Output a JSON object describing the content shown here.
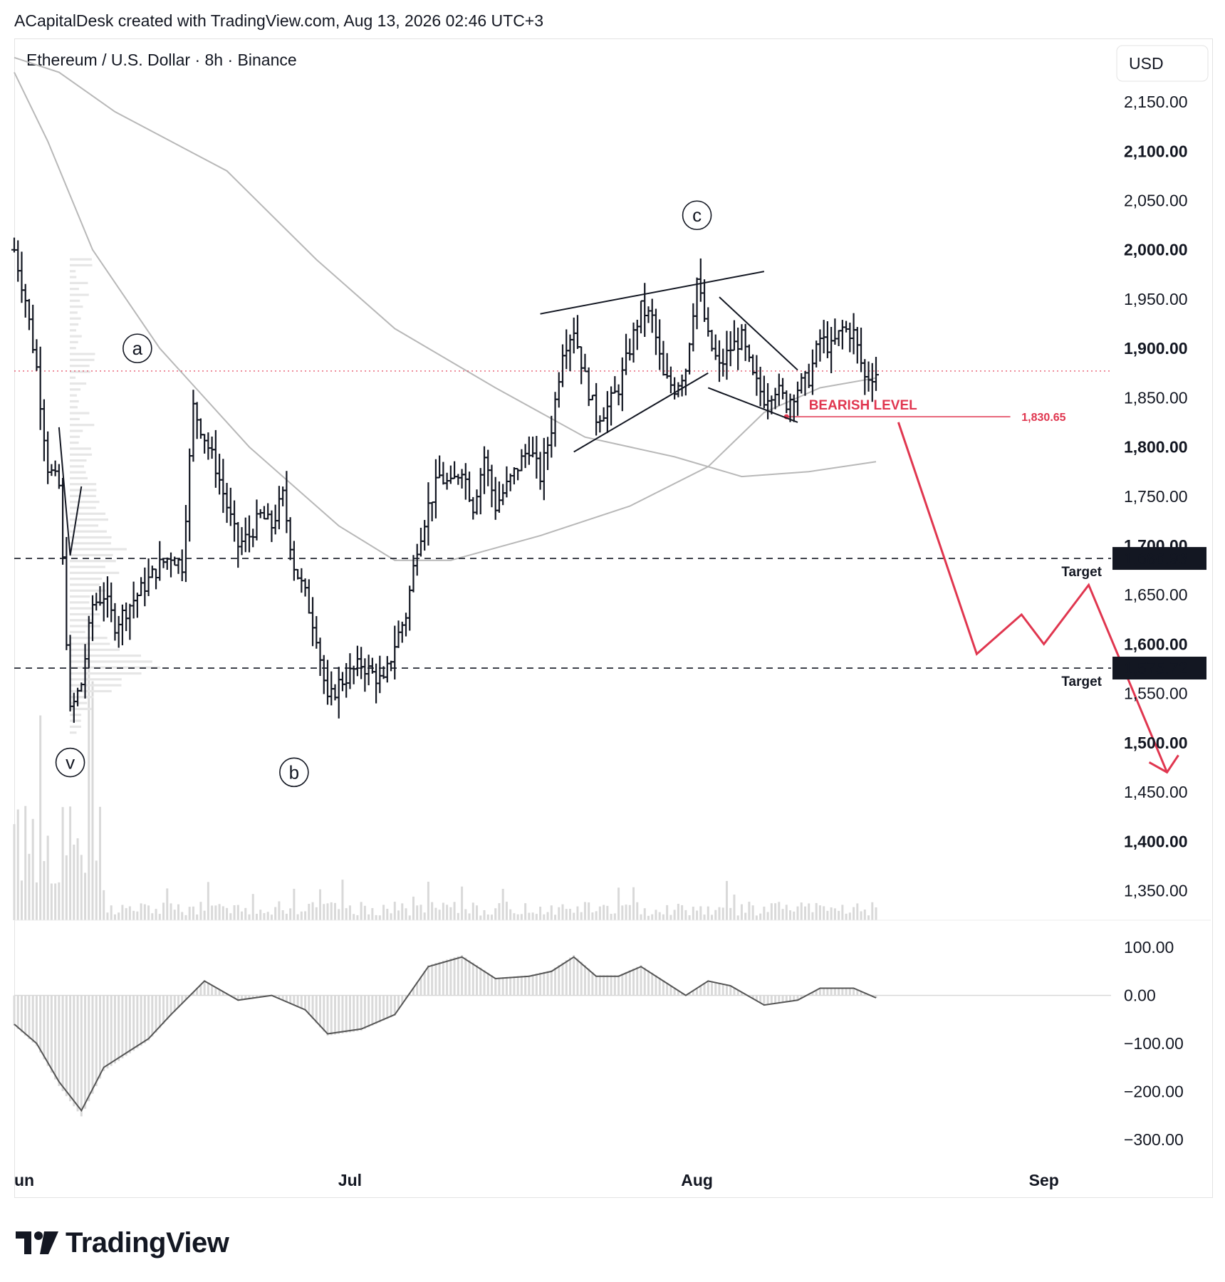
{
  "header": {
    "credit": "ACapitalDesk created with TradingView.com, Aug 13, 2026 02:46 UTC+3",
    "symbol": "Ethereum / U.S. Dollar · 8h · Binance",
    "currency_button": "USD"
  },
  "footer": {
    "brand": "TradingView"
  },
  "colors": {
    "accent_red": "#e0364f",
    "candle": "#131722",
    "ma_line": "#b8b8b8",
    "volume": "#d9d9d9",
    "grid_border": "#e3e3e3"
  },
  "chart_data": [
    {
      "type": "ohlc",
      "title": "Ethereum / U.S. Dollar · 8h · Binance",
      "price_axis": {
        "ticks": [
          "2,150.00",
          "2,100.00",
          "2,050.00",
          "2,000.00",
          "1,950.00",
          "1,900.00",
          "1,850.00",
          "1,800.00",
          "1,750.00",
          "1,700.00",
          "1,650.00",
          "1,600.00",
          "1,550.00",
          "1,500.00",
          "1,450.00",
          "1,400.00",
          "1,350.00"
        ],
        "tick_values": [
          2150,
          2100,
          2050,
          2000,
          1950,
          1900,
          1850,
          1800,
          1750,
          1700,
          1650,
          1600,
          1550,
          1500,
          1450,
          1400,
          1350
        ],
        "range": [
          1320,
          2210
        ]
      },
      "time_axis": {
        "labels": [
          "un",
          "Jul",
          "Aug",
          "Sep"
        ],
        "label_dates": [
          "2026-06-01",
          "2026-07-01",
          "2026-08-01",
          "2026-09-01"
        ],
        "range": [
          "2026-06-01",
          "2026-09-07"
        ]
      },
      "close_points": [
        [
          "2026-06-01",
          2000
        ],
        [
          "2026-06-02",
          1950
        ],
        [
          "2026-06-03",
          1880
        ],
        [
          "2026-06-04",
          1780
        ],
        [
          "2026-06-05",
          1760
        ],
        [
          "2026-06-06",
          1530
        ],
        [
          "2026-06-07",
          1560
        ],
        [
          "2026-06-08",
          1640
        ],
        [
          "2026-06-09",
          1650
        ],
        [
          "2026-06-10",
          1620
        ],
        [
          "2026-06-12",
          1650
        ],
        [
          "2026-06-14",
          1680
        ],
        [
          "2026-06-15",
          1690
        ],
        [
          "2026-06-16",
          1680
        ],
        [
          "2026-06-17",
          1840
        ],
        [
          "2026-06-18",
          1810
        ],
        [
          "2026-06-19",
          1780
        ],
        [
          "2026-06-20",
          1740
        ],
        [
          "2026-06-21",
          1700
        ],
        [
          "2026-06-22",
          1710
        ],
        [
          "2026-06-23",
          1730
        ],
        [
          "2026-06-24",
          1720
        ],
        [
          "2026-06-25",
          1750
        ],
        [
          "2026-06-26",
          1680
        ],
        [
          "2026-06-27",
          1650
        ],
        [
          "2026-06-28",
          1610
        ],
        [
          "2026-06-29",
          1540
        ],
        [
          "2026-06-30",
          1560
        ],
        [
          "2026-07-02",
          1580
        ],
        [
          "2026-07-04",
          1560
        ],
        [
          "2026-07-05",
          1600
        ],
        [
          "2026-07-06",
          1630
        ],
        [
          "2026-07-07",
          1700
        ],
        [
          "2026-07-08",
          1740
        ],
        [
          "2026-07-09",
          1770
        ],
        [
          "2026-07-10",
          1760
        ],
        [
          "2026-07-11",
          1780
        ],
        [
          "2026-07-12",
          1740
        ],
        [
          "2026-07-13",
          1790
        ],
        [
          "2026-07-14",
          1740
        ],
        [
          "2026-07-15",
          1760
        ],
        [
          "2026-07-16",
          1780
        ],
        [
          "2026-07-17",
          1800
        ],
        [
          "2026-07-18",
          1770
        ],
        [
          "2026-07-19",
          1820
        ],
        [
          "2026-07-20",
          1900
        ],
        [
          "2026-07-21",
          1920
        ],
        [
          "2026-07-22",
          1870
        ],
        [
          "2026-07-23",
          1830
        ],
        [
          "2026-07-24",
          1840
        ],
        [
          "2026-07-25",
          1860
        ],
        [
          "2026-07-26",
          1900
        ],
        [
          "2026-07-27",
          1940
        ],
        [
          "2026-07-28",
          1930
        ],
        [
          "2026-07-29",
          1870
        ],
        [
          "2026-07-30",
          1860
        ],
        [
          "2026-07-31",
          1880
        ],
        [
          "2026-08-01",
          1970
        ],
        [
          "2026-08-02",
          1910
        ],
        [
          "2026-08-03",
          1880
        ],
        [
          "2026-08-04",
          1900
        ],
        [
          "2026-08-05",
          1910
        ],
        [
          "2026-08-06",
          1870
        ],
        [
          "2026-08-07",
          1850
        ],
        [
          "2026-08-08",
          1860
        ],
        [
          "2026-08-09",
          1845
        ],
        [
          "2026-08-10",
          1860
        ],
        [
          "2026-08-11",
          1870
        ],
        [
          "2026-08-12",
          1910
        ],
        [
          "2026-08-13",
          1900
        ],
        [
          "2026-08-14",
          1920
        ],
        [
          "2026-08-15",
          1915
        ],
        [
          "2026-08-16",
          1870
        ],
        [
          "2026-08-17",
          1875
        ]
      ],
      "wave_labels": [
        "v",
        "a",
        "b",
        "c"
      ],
      "levels": [
        {
          "label": "BEARISH LEVEL",
          "value": "1,830.65"
        },
        {
          "label": "Target",
          "value": "1,686.93"
        },
        {
          "label": "Target",
          "value": "1,575.72"
        }
      ],
      "projection_path": [
        [
          "2026-08-19",
          1825
        ],
        [
          "2026-08-26",
          1590
        ],
        [
          "2026-08-30",
          1630
        ],
        [
          "2026-09-01",
          1600
        ],
        [
          "2026-09-05",
          1660
        ],
        [
          "2026-09-12",
          1470
        ]
      ],
      "current_price_line": 1877
    },
    {
      "type": "oscillator",
      "axis_ticks": [
        "100.00",
        "0.00",
        "−100.00",
        "−200.00",
        "−300.00"
      ],
      "tick_values": [
        100,
        0,
        -100,
        -200,
        -300
      ],
      "range": [
        -330,
        130
      ],
      "line_points": [
        [
          "2026-06-01",
          -60
        ],
        [
          "2026-06-03",
          -100
        ],
        [
          "2026-06-05",
          -180
        ],
        [
          "2026-06-07",
          -240
        ],
        [
          "2026-06-09",
          -150
        ],
        [
          "2026-06-11",
          -120
        ],
        [
          "2026-06-13",
          -90
        ],
        [
          "2026-06-15",
          -40
        ],
        [
          "2026-06-18",
          30
        ],
        [
          "2026-06-21",
          -10
        ],
        [
          "2026-06-24",
          0
        ],
        [
          "2026-06-27",
          -30
        ],
        [
          "2026-06-29",
          -80
        ],
        [
          "2026-07-02",
          -70
        ],
        [
          "2026-07-05",
          -40
        ],
        [
          "2026-07-08",
          60
        ],
        [
          "2026-07-11",
          80
        ],
        [
          "2026-07-14",
          35
        ],
        [
          "2026-07-17",
          40
        ],
        [
          "2026-07-19",
          50
        ],
        [
          "2026-07-21",
          80
        ],
        [
          "2026-07-23",
          40
        ],
        [
          "2026-07-25",
          40
        ],
        [
          "2026-07-27",
          60
        ],
        [
          "2026-07-29",
          30
        ],
        [
          "2026-07-31",
          0
        ],
        [
          "2026-08-02",
          30
        ],
        [
          "2026-08-04",
          20
        ],
        [
          "2026-08-07",
          -20
        ],
        [
          "2026-08-10",
          -10
        ],
        [
          "2026-08-12",
          15
        ],
        [
          "2026-08-15",
          15
        ],
        [
          "2026-08-17",
          -5
        ]
      ]
    }
  ]
}
